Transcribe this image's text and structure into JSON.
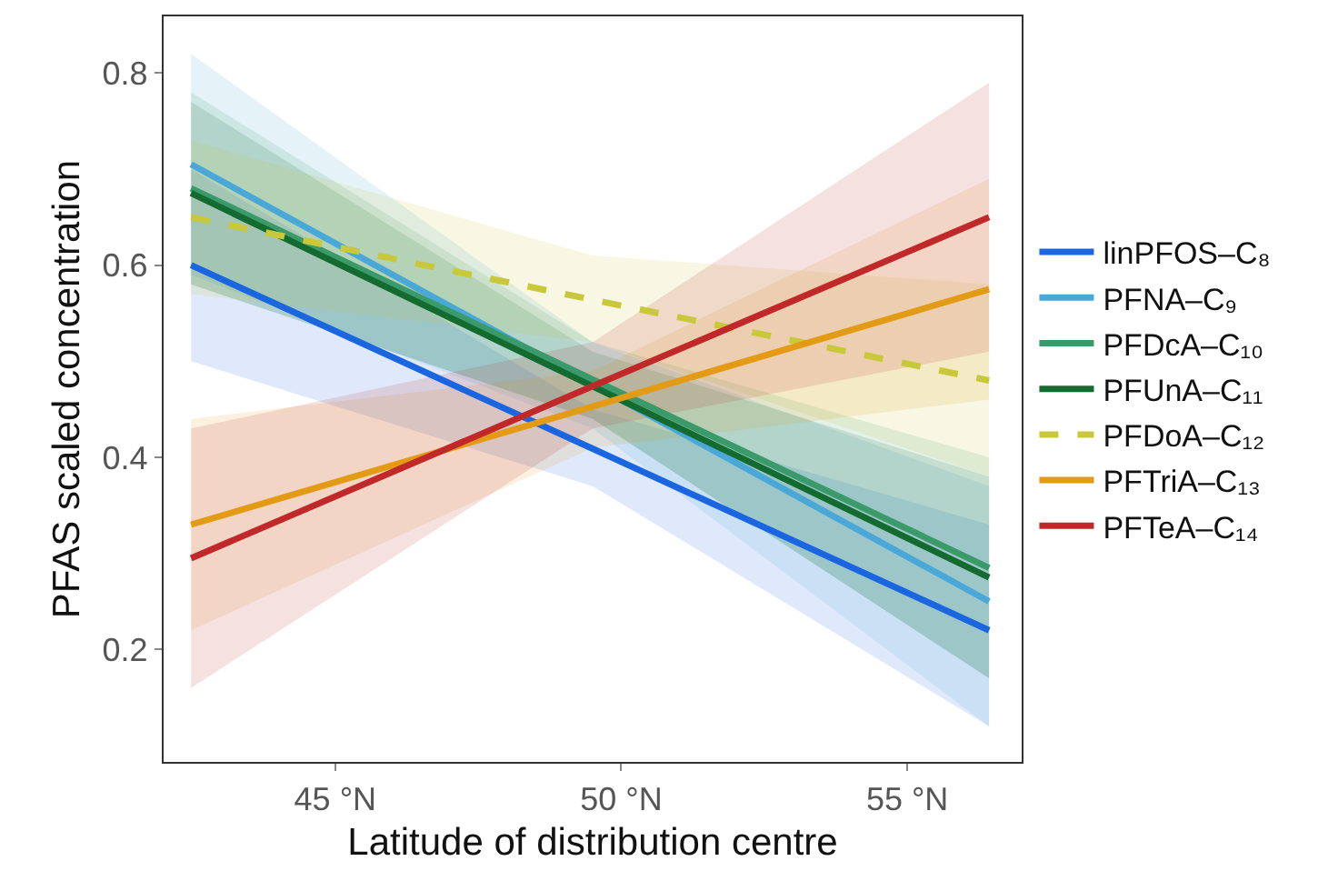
{
  "chart_data": {
    "type": "line",
    "xlabel": "Latitude of distribution centre",
    "ylabel": "PFAS scaled concentration",
    "x": [
      42.48,
      49.5,
      56.43
    ],
    "xlim": [
      42.0,
      57.0
    ],
    "xticks": [
      {
        "value": 45,
        "label": "45 °N"
      },
      {
        "value": 50,
        "label": "50 °N"
      },
      {
        "value": 55,
        "label": "55 °N"
      }
    ],
    "ylim": [
      0.083,
      0.859
    ],
    "yticks": [
      0.2,
      0.4,
      0.6,
      0.8
    ],
    "grid": false,
    "legend": "right",
    "marker": "none",
    "series": [
      {
        "name": "linPFOS–C₈",
        "color": "#1a66e0",
        "values": [
          0.6,
          0.409,
          0.22
        ],
        "lower": [
          0.5,
          0.37,
          0.12
        ],
        "upper": [
          0.7,
          0.45,
          0.33
        ]
      },
      {
        "name": "PFNA–C₉",
        "color": "#4aa8d8",
        "values": [
          0.705,
          0.476,
          0.25
        ],
        "lower": [
          0.59,
          0.43,
          0.12
        ],
        "upper": [
          0.82,
          0.52,
          0.37
        ]
      },
      {
        "name": "PFDcA–C₁₀",
        "color": "#3a9a6a",
        "values": [
          0.68,
          0.481,
          0.285
        ],
        "lower": [
          0.58,
          0.44,
          0.17
        ],
        "upper": [
          0.78,
          0.52,
          0.4
        ]
      },
      {
        "name": "PFUnA–C₁₁",
        "color": "#136b30",
        "values": [
          0.675,
          0.474,
          0.275
        ],
        "lower": [
          0.58,
          0.44,
          0.17
        ],
        "upper": [
          0.77,
          0.51,
          0.38
        ]
      },
      {
        "name": "PFDoA–C₁₂",
        "color": "#c8c83a",
        "line_style": "dashed",
        "values": [
          0.65,
          0.564,
          0.48
        ],
        "lower": [
          0.57,
          0.52,
          0.38
        ],
        "upper": [
          0.73,
          0.61,
          0.58
        ]
      },
      {
        "name": "PFTriA–C₁₃",
        "color": "#e39a14",
        "values": [
          0.33,
          0.453,
          0.575
        ],
        "lower": [
          0.22,
          0.41,
          0.46
        ],
        "upper": [
          0.44,
          0.49,
          0.69
        ]
      },
      {
        "name": "PFTeA–C₁₄",
        "color": "#c0282a",
        "values": [
          0.295,
          0.474,
          0.65
        ],
        "lower": [
          0.16,
          0.43,
          0.51
        ],
        "upper": [
          0.43,
          0.52,
          0.79
        ]
      }
    ]
  }
}
